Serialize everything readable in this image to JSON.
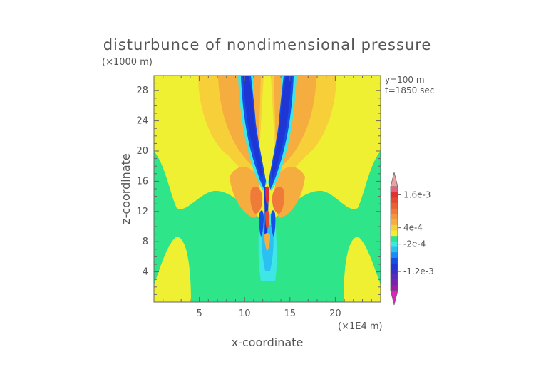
{
  "chart_data": {
    "type": "heatmap",
    "title": "disturbunce of nondimensional pressure",
    "z_unit_label": "(×1000 m)",
    "x_unit_label": "(×1E4 m)",
    "xlabel": "x-coordinate",
    "ylabel": "z-coordinate",
    "info_lines": [
      "y=100 m",
      "t=1850 sec"
    ],
    "xlim": [
      0,
      25
    ],
    "ylim": [
      0,
      30
    ],
    "xticks": [
      5,
      10,
      15,
      20
    ],
    "yticks": [
      4,
      8,
      12,
      16,
      20,
      24,
      28
    ],
    "colorbar": {
      "labels": [
        {
          "text": "1.6e-3",
          "value": 0.0016
        },
        {
          "text": "4e-4",
          "value": 0.0004
        },
        {
          "text": "-2e-4",
          "value": -0.0002
        },
        {
          "text": "-1.2e-3",
          "value": -0.0012
        }
      ],
      "levels": [
        {
          "color": "#9a1fa6",
          "value": -0.0018
        },
        {
          "color": "#7a22b0",
          "value": -0.0016
        },
        {
          "color": "#5a2bba",
          "value": -0.0014
        },
        {
          "color": "#3a2fc4",
          "value": -0.0012
        },
        {
          "color": "#1e37d4",
          "value": -0.001
        },
        {
          "color": "#1550e6",
          "value": -0.0008
        },
        {
          "color": "#1c8cf2",
          "value": -0.0006
        },
        {
          "color": "#2ac0f2",
          "value": -0.0004
        },
        {
          "color": "#3ee6e6",
          "value": -0.0002
        },
        {
          "color": "#2ee58a",
          "value": 0.0
        },
        {
          "color": "#f0f032",
          "value": 0.0002
        },
        {
          "color": "#f7cf38",
          "value": 0.0004
        },
        {
          "color": "#f5ad40",
          "value": 0.0006
        },
        {
          "color": "#f29440",
          "value": 0.0008
        },
        {
          "color": "#ef7a3a",
          "value": 0.001
        },
        {
          "color": "#eb6030",
          "value": 0.0012
        },
        {
          "color": "#e64a2a",
          "value": 0.0014
        },
        {
          "color": "#e03030",
          "value": 0.0016
        },
        {
          "color": "#e86080",
          "value": 0.0018
        }
      ],
      "min_arrow_color": "#e020c0",
      "max_arrow_color": "#f0a0a0"
    },
    "colors": {
      "background_positive": "#f0f032",
      "neutral": "#2ee58a",
      "weak_positive": "#f7cf38",
      "moderate_positive": "#f5ad40",
      "strong_positive": "#ef7a3a",
      "peak_positive": "#e03030",
      "weak_negative": "#3ee6e6",
      "moderate_negative": "#2ac0f2",
      "strong_negative": "#1550e6",
      "peak_negative": "#1e37d4"
    }
  }
}
